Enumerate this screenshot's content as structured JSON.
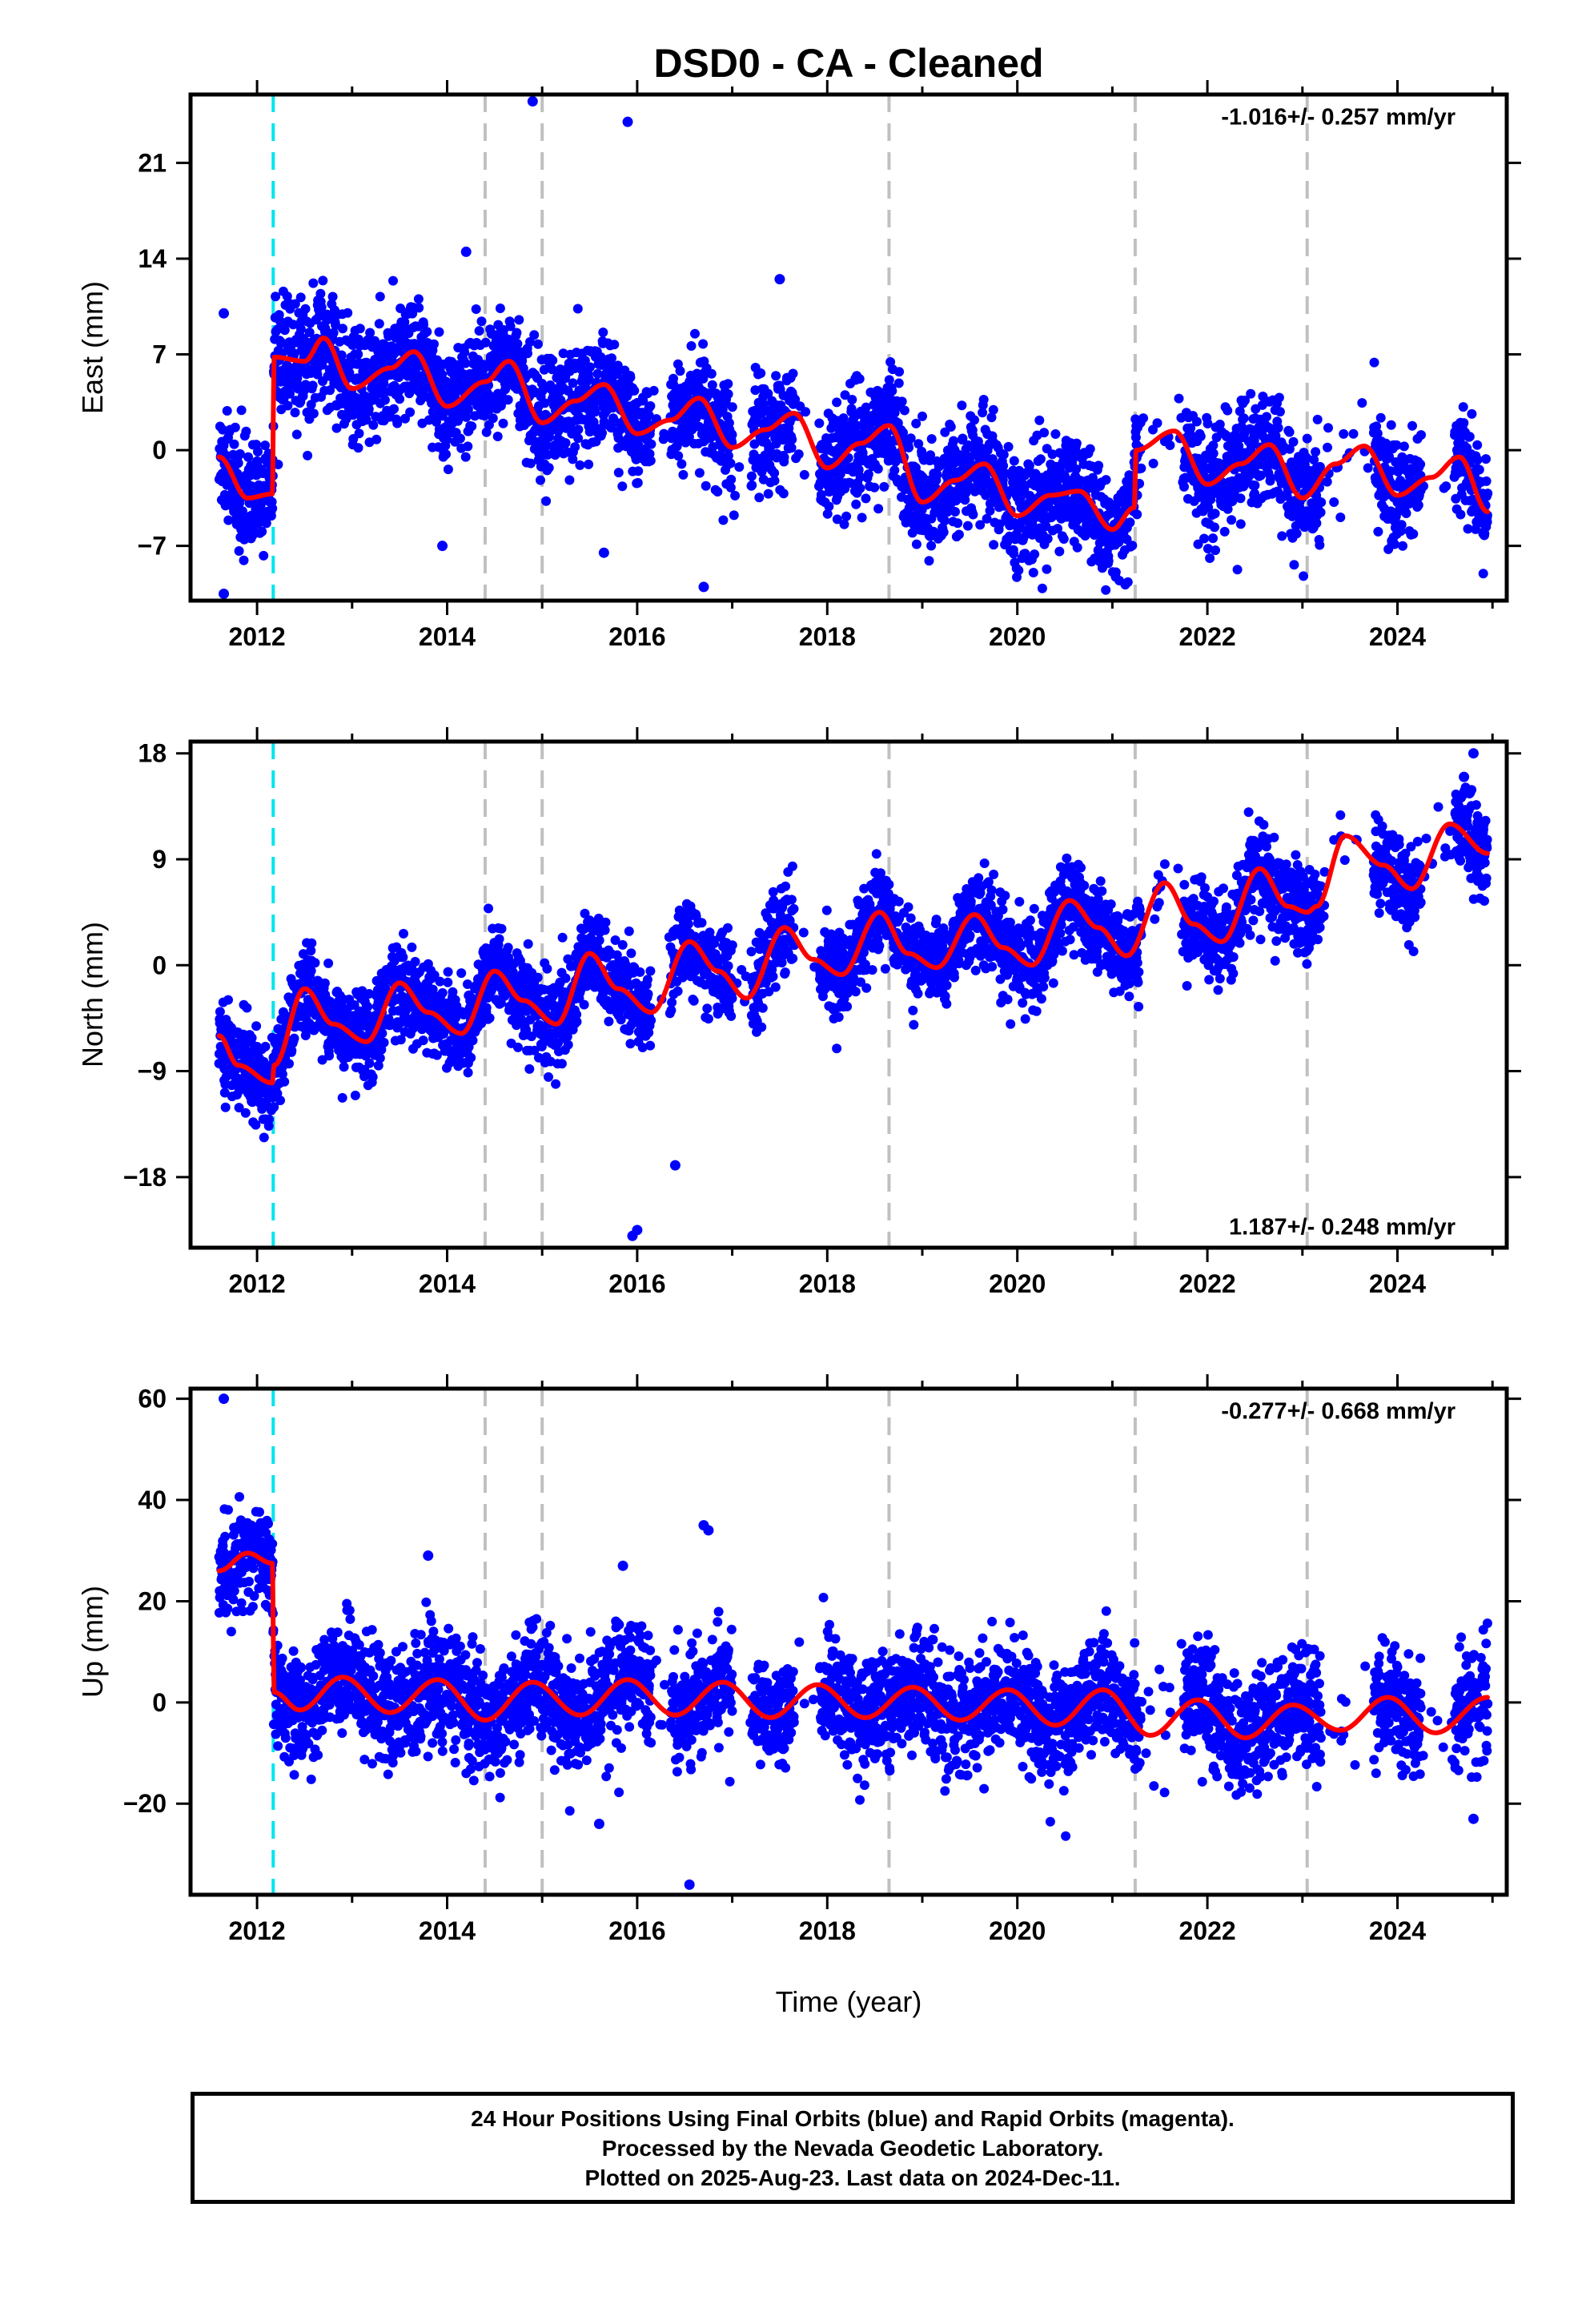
{
  "colors": {
    "observations": "#0000ff",
    "model": "#ff0000",
    "antenna_change": "#00e5ee",
    "equipment_change": "#c0c0c0",
    "frame": "#000000"
  },
  "chart_data": [
    {
      "type": "scatter",
      "title": "DSD0  - CA - Cleaned",
      "ylabel": "East (mm)",
      "xlabel": "",
      "rate_label": "-1.016+/- 0.257 mm/yr",
      "xlim": [
        2011.3,
        2025.15
      ],
      "ylim": [
        -11,
        26
      ],
      "xticks": [
        2012,
        2014,
        2016,
        2018,
        2020,
        2022,
        2024
      ],
      "xtick_labels": [
        "2012",
        "2014",
        "2016",
        "2018",
        "2020",
        "2022",
        "2024"
      ],
      "yticks": [
        -7,
        0,
        7,
        14,
        21
      ],
      "ytick_labels": [
        "-7",
        "0",
        "7",
        "14",
        "21"
      ],
      "grid": false,
      "antenna_change_epochs": [
        2012.17
      ],
      "equipment_change_epochs": [
        2014.4,
        2015.0,
        2018.65,
        2021.24,
        2023.05
      ],
      "data_start": 2011.6,
      "data_end": 2024.95,
      "observation_scatter_mm": 2.0,
      "observation_gaps": [
        [
          2016.15,
          2016.35
        ],
        [
          2017.0,
          2017.2
        ],
        [
          2017.65,
          2017.92
        ],
        [
          2021.3,
          2021.75
        ],
        [
          2023.2,
          2023.75
        ],
        [
          2024.25,
          2024.6
        ]
      ],
      "model_curve": [
        {
          "x": 2011.6,
          "y": -0.5
        },
        {
          "x": 2011.9,
          "y": -3.5
        },
        {
          "x": 2012.16,
          "y": -3.2
        },
        {
          "x": 2012.18,
          "y": 6.8
        },
        {
          "x": 2012.5,
          "y": 6.5
        },
        {
          "x": 2012.7,
          "y": 8.2
        },
        {
          "x": 2013.0,
          "y": 4.5
        },
        {
          "x": 2013.4,
          "y": 6.0
        },
        {
          "x": 2013.65,
          "y": 7.2
        },
        {
          "x": 2014.0,
          "y": 3.2
        },
        {
          "x": 2014.4,
          "y": 5.0
        },
        {
          "x": 2014.65,
          "y": 6.5
        },
        {
          "x": 2015.0,
          "y": 2.0
        },
        {
          "x": 2015.35,
          "y": 3.6
        },
        {
          "x": 2015.65,
          "y": 4.8
        },
        {
          "x": 2016.0,
          "y": 1.2
        },
        {
          "x": 2016.35,
          "y": 2.2
        },
        {
          "x": 2016.65,
          "y": 3.8
        },
        {
          "x": 2017.0,
          "y": 0.2
        },
        {
          "x": 2017.35,
          "y": 1.5
        },
        {
          "x": 2017.65,
          "y": 2.7
        },
        {
          "x": 2018.0,
          "y": -1.3
        },
        {
          "x": 2018.35,
          "y": 0.5
        },
        {
          "x": 2018.65,
          "y": 1.8
        },
        {
          "x": 2019.0,
          "y": -3.8
        },
        {
          "x": 2019.35,
          "y": -2.2
        },
        {
          "x": 2019.65,
          "y": -1.0
        },
        {
          "x": 2020.0,
          "y": -4.8
        },
        {
          "x": 2020.35,
          "y": -3.3
        },
        {
          "x": 2020.65,
          "y": -3.0
        },
        {
          "x": 2021.0,
          "y": -5.8
        },
        {
          "x": 2021.23,
          "y": -4.2
        },
        {
          "x": 2021.25,
          "y": 0.0
        },
        {
          "x": 2021.65,
          "y": 1.4
        },
        {
          "x": 2022.0,
          "y": -2.5
        },
        {
          "x": 2022.35,
          "y": -1.0
        },
        {
          "x": 2022.65,
          "y": 0.4
        },
        {
          "x": 2023.0,
          "y": -3.5
        },
        {
          "x": 2023.35,
          "y": -1.0
        },
        {
          "x": 2023.65,
          "y": 0.3
        },
        {
          "x": 2024.0,
          "y": -3.3
        },
        {
          "x": 2024.35,
          "y": -2.0
        },
        {
          "x": 2024.65,
          "y": -0.5
        },
        {
          "x": 2024.95,
          "y": -4.5
        }
      ],
      "outliers": [
        {
          "x": 2011.65,
          "y": 10
        },
        {
          "x": 2011.65,
          "y": -10.5
        },
        {
          "x": 2014.2,
          "y": 14.5
        },
        {
          "x": 2014.9,
          "y": 25.5
        },
        {
          "x": 2015.9,
          "y": 24
        },
        {
          "x": 2017.5,
          "y": 12.5
        },
        {
          "x": 2016.7,
          "y": -10
        },
        {
          "x": 2013.95,
          "y": -7
        },
        {
          "x": 2015.65,
          "y": -7.5
        }
      ]
    },
    {
      "type": "scatter",
      "ylabel": "North (mm)",
      "xlabel": "",
      "rate_label": "1.187+/- 0.248 mm/yr",
      "xlim": [
        2011.3,
        2025.15
      ],
      "ylim": [
        -24,
        19
      ],
      "xticks": [
        2012,
        2014,
        2016,
        2018,
        2020,
        2022,
        2024
      ],
      "xtick_labels": [
        "2012",
        "2014",
        "2016",
        "2018",
        "2020",
        "2022",
        "2024"
      ],
      "yticks": [
        -18,
        -9,
        0,
        9,
        18
      ],
      "ytick_labels": [
        "-18",
        "-9",
        "0",
        "9",
        "18"
      ],
      "grid": false,
      "antenna_change_epochs": [
        2012.17
      ],
      "equipment_change_epochs": [
        2014.4,
        2015.0,
        2018.65,
        2021.24,
        2023.05
      ],
      "data_start": 2011.6,
      "data_end": 2024.95,
      "observation_scatter_mm": 1.9,
      "observation_gaps": [
        [
          2016.15,
          2016.35
        ],
        [
          2017.0,
          2017.2
        ],
        [
          2017.65,
          2017.92
        ],
        [
          2021.3,
          2021.75
        ],
        [
          2023.2,
          2023.75
        ],
        [
          2024.25,
          2024.6
        ]
      ],
      "model_curve": [
        {
          "x": 2011.6,
          "y": -6.0
        },
        {
          "x": 2011.8,
          "y": -8.5
        },
        {
          "x": 2012.16,
          "y": -10.0
        },
        {
          "x": 2012.18,
          "y": -8.5
        },
        {
          "x": 2012.5,
          "y": -2.0
        },
        {
          "x": 2012.8,
          "y": -5.0
        },
        {
          "x": 2013.15,
          "y": -6.5
        },
        {
          "x": 2013.5,
          "y": -1.5
        },
        {
          "x": 2013.8,
          "y": -4.0
        },
        {
          "x": 2014.15,
          "y": -5.8
        },
        {
          "x": 2014.5,
          "y": -0.5
        },
        {
          "x": 2014.8,
          "y": -3.0
        },
        {
          "x": 2015.15,
          "y": -5.0
        },
        {
          "x": 2015.5,
          "y": 1.0
        },
        {
          "x": 2015.8,
          "y": -2.0
        },
        {
          "x": 2016.15,
          "y": -4.0
        },
        {
          "x": 2016.55,
          "y": 2.0
        },
        {
          "x": 2016.85,
          "y": -0.5
        },
        {
          "x": 2017.15,
          "y": -2.8
        },
        {
          "x": 2017.55,
          "y": 3.2
        },
        {
          "x": 2017.85,
          "y": 0.5
        },
        {
          "x": 2018.15,
          "y": -0.8
        },
        {
          "x": 2018.55,
          "y": 4.5
        },
        {
          "x": 2018.85,
          "y": 1.0
        },
        {
          "x": 2019.15,
          "y": -0.2
        },
        {
          "x": 2019.55,
          "y": 4.3
        },
        {
          "x": 2019.85,
          "y": 1.5
        },
        {
          "x": 2020.15,
          "y": 0.0
        },
        {
          "x": 2020.55,
          "y": 5.5
        },
        {
          "x": 2020.85,
          "y": 3.2
        },
        {
          "x": 2021.15,
          "y": 0.8
        },
        {
          "x": 2021.55,
          "y": 7.0
        },
        {
          "x": 2021.85,
          "y": 3.5
        },
        {
          "x": 2022.15,
          "y": 2.0
        },
        {
          "x": 2022.55,
          "y": 8.2
        },
        {
          "x": 2022.85,
          "y": 5.0
        },
        {
          "x": 2023.05,
          "y": 4.5
        },
        {
          "x": 2023.15,
          "y": 5.0
        },
        {
          "x": 2023.45,
          "y": 11.0
        },
        {
          "x": 2023.85,
          "y": 8.5
        },
        {
          "x": 2024.15,
          "y": 6.5
        },
        {
          "x": 2024.55,
          "y": 12.0
        },
        {
          "x": 2024.95,
          "y": 9.5
        }
      ],
      "outliers": [
        {
          "x": 2015.95,
          "y": -23
        },
        {
          "x": 2016.0,
          "y": -22.5
        },
        {
          "x": 2016.4,
          "y": -17
        },
        {
          "x": 2024.8,
          "y": 18
        },
        {
          "x": 2024.7,
          "y": 16
        }
      ]
    },
    {
      "type": "scatter",
      "ylabel": "Up (mm)",
      "xlabel": "Time (year)",
      "rate_label": "-0.277+/- 0.668 mm/yr",
      "xlim": [
        2011.3,
        2025.15
      ],
      "ylim": [
        -38,
        62
      ],
      "xticks": [
        2012,
        2014,
        2016,
        2018,
        2020,
        2022,
        2024
      ],
      "xtick_labels": [
        "2012",
        "2014",
        "2016",
        "2018",
        "2020",
        "2022",
        "2024"
      ],
      "yticks": [
        -20,
        0,
        20,
        40,
        60
      ],
      "ytick_labels": [
        "-20",
        "0",
        "20",
        "40",
        "60"
      ],
      "grid": false,
      "antenna_change_epochs": [
        2012.17
      ],
      "equipment_change_epochs": [
        2014.4,
        2015.0,
        2018.65,
        2021.24,
        2023.05
      ],
      "data_start": 2011.6,
      "data_end": 2024.95,
      "observation_scatter_mm": 5.5,
      "observation_gaps": [
        [
          2016.15,
          2016.35
        ],
        [
          2017.0,
          2017.2
        ],
        [
          2017.65,
          2017.92
        ],
        [
          2021.3,
          2021.75
        ],
        [
          2023.2,
          2023.75
        ],
        [
          2024.25,
          2024.6
        ]
      ],
      "model_curve": [
        {
          "x": 2011.6,
          "y": 26.0
        },
        {
          "x": 2011.9,
          "y": 29.5
        },
        {
          "x": 2012.16,
          "y": 27.5
        },
        {
          "x": 2012.18,
          "y": 2.0
        },
        {
          "x": 2012.45,
          "y": -1.5
        },
        {
          "x": 2012.9,
          "y": 5.0
        },
        {
          "x": 2013.4,
          "y": -2.0
        },
        {
          "x": 2013.9,
          "y": 4.5
        },
        {
          "x": 2014.4,
          "y": -3.5
        },
        {
          "x": 2014.9,
          "y": 4.0
        },
        {
          "x": 2015.4,
          "y": -2.5
        },
        {
          "x": 2015.9,
          "y": 4.5
        },
        {
          "x": 2016.4,
          "y": -2.5
        },
        {
          "x": 2016.9,
          "y": 4.0
        },
        {
          "x": 2017.4,
          "y": -3.0
        },
        {
          "x": 2017.9,
          "y": 3.5
        },
        {
          "x": 2018.4,
          "y": -3.0
        },
        {
          "x": 2018.9,
          "y": 3.0
        },
        {
          "x": 2019.4,
          "y": -3.5
        },
        {
          "x": 2019.9,
          "y": 2.5
        },
        {
          "x": 2020.4,
          "y": -4.5
        },
        {
          "x": 2020.9,
          "y": 2.5
        },
        {
          "x": 2021.4,
          "y": -6.5
        },
        {
          "x": 2021.9,
          "y": 0.5
        },
        {
          "x": 2022.4,
          "y": -7.0
        },
        {
          "x": 2022.9,
          "y": -0.5
        },
        {
          "x": 2023.4,
          "y": -5.5
        },
        {
          "x": 2023.9,
          "y": 1.0
        },
        {
          "x": 2024.4,
          "y": -6.0
        },
        {
          "x": 2024.95,
          "y": 1.0
        }
      ],
      "outliers": [
        {
          "x": 2011.65,
          "y": 60
        },
        {
          "x": 2016.55,
          "y": -36
        },
        {
          "x": 2016.7,
          "y": 35
        },
        {
          "x": 2016.75,
          "y": 34
        },
        {
          "x": 2015.85,
          "y": 27
        },
        {
          "x": 2015.6,
          "y": -24
        },
        {
          "x": 2013.8,
          "y": 29
        },
        {
          "x": 2024.8,
          "y": -23
        }
      ]
    }
  ],
  "footer": {
    "line1": "24 Hour Positions Using Final Orbits (blue) and Rapid Orbits (magenta).",
    "line2": "Processed by the Nevada Geodetic Laboratory.",
    "line3": "Plotted on 2025-Aug-23. Last data on 2024-Dec-11."
  }
}
